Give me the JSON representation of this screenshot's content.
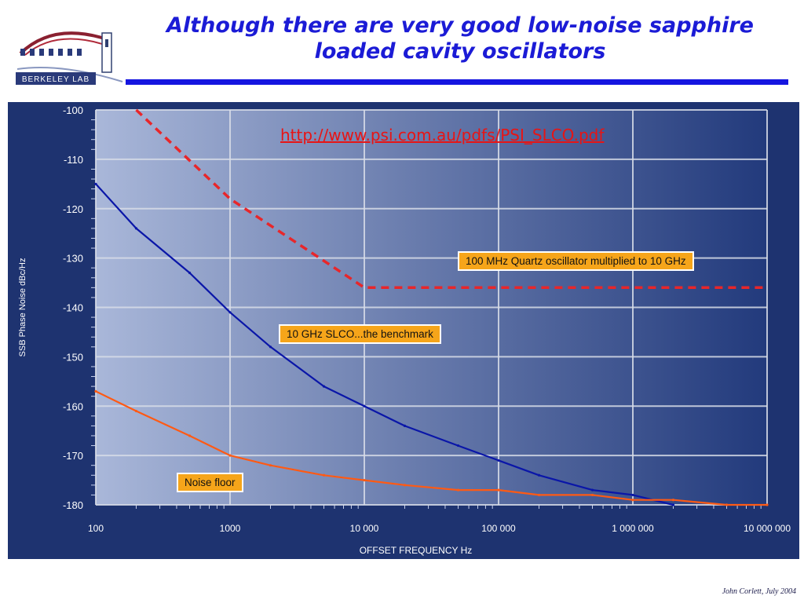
{
  "slide": {
    "title": "Although there are very good low-noise sapphire loaded cavity oscillators",
    "link": "http://www.psi.com.au/pdfs/PSI_SLCO.pdf",
    "footer": "John Corlett,  July 2004",
    "logo_text": "BERKELEY LAB"
  },
  "colors": {
    "title": "#1b1bd6",
    "rule": "#1515e0",
    "plot_bg_left": "#a9b7d9",
    "plot_bg_right": "#223a7c",
    "frame": "#1e3370",
    "slco_line": "#0a16a8",
    "noise_floor_line": "#ff5a14",
    "quartz_line": "#e8262a",
    "label_bg": "#f6a51a",
    "link": "#e81414"
  },
  "chart_data": {
    "type": "line",
    "title": "",
    "xlabel": "OFFSET FREQUENCY Hz",
    "ylabel": "SSB Phase Noise dBc/Hz",
    "x_scale": "log",
    "xlim": [
      100,
      10000000
    ],
    "ylim": [
      -180,
      -100
    ],
    "grid": true,
    "x_ticks": [
      100,
      1000,
      10000,
      100000,
      1000000,
      10000000
    ],
    "x_tick_labels": [
      "100",
      "1000",
      "10 000",
      "100 000",
      "1 000 000",
      "10 000 000"
    ],
    "y_ticks": [
      -100,
      -110,
      -120,
      -130,
      -140,
      -150,
      -160,
      -170,
      -180
    ],
    "y_tick_labels": [
      "-100",
      "-110",
      "-120",
      "-130",
      "-140",
      "-150",
      "-160",
      "-170",
      "-180"
    ],
    "series": [
      {
        "name": "100 MHz Quartz oscillator multiplied to 10 GHz",
        "style": "dashed",
        "x": [
          200,
          1000,
          10000,
          10000000
        ],
        "y": [
          -100,
          -118,
          -136,
          -136
        ]
      },
      {
        "name": "10 GHz SLCO...the benchmark",
        "style": "solid",
        "x": [
          100,
          200,
          500,
          1000,
          2000,
          5000,
          10000,
          20000,
          50000,
          100000,
          200000,
          500000,
          1000000,
          2000000
        ],
        "y": [
          -115,
          -124,
          -133,
          -141,
          -148,
          -156,
          -160,
          -164,
          -168,
          -171,
          -174,
          -177,
          -178,
          -180
        ]
      },
      {
        "name": "Noise floor",
        "style": "solid",
        "x": [
          100,
          200,
          500,
          1000,
          2000,
          5000,
          10000,
          20000,
          50000,
          100000,
          200000,
          500000,
          1000000,
          2000000,
          5000000,
          10000000
        ],
        "y": [
          -157,
          -161,
          -166,
          -170,
          -172,
          -174,
          -175,
          -176,
          -177,
          -177,
          -178,
          -178,
          -179,
          -179,
          -180,
          -180
        ]
      }
    ],
    "annotations": [
      "100 MHz Quartz oscillator multiplied to 10 GHz",
      "10 GHz SLCO...the benchmark",
      "Noise floor"
    ]
  }
}
